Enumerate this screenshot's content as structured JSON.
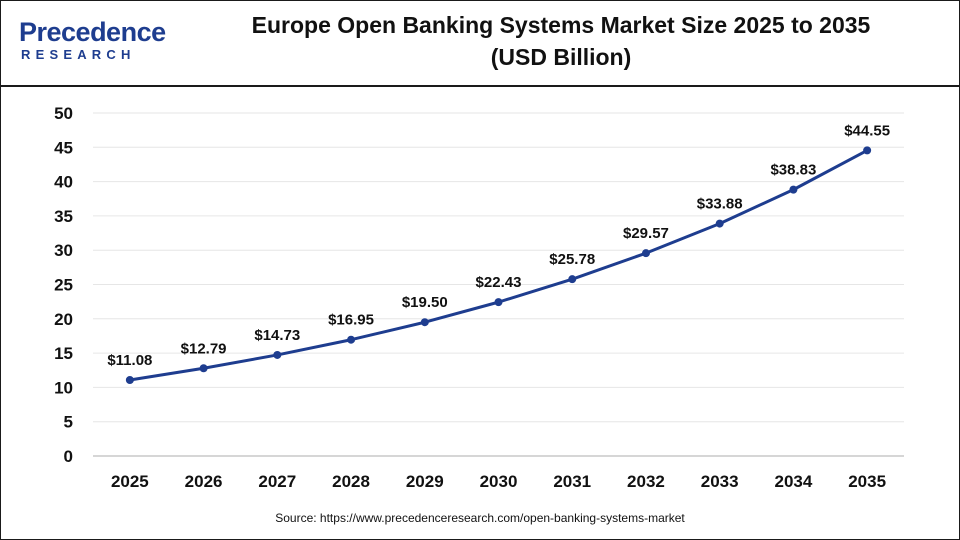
{
  "brand": {
    "word": "Precedence",
    "sub": "RESEARCH"
  },
  "title_line1": "Europe Open Banking Systems Market Size 2025 to 2035",
  "title_line2": "(USD Billion)",
  "source": "Source: https://www.precedenceresearch.com/open-banking-systems-market",
  "colors": {
    "line": "#1e3d8f",
    "grid": "#e6e6e6",
    "text": "#111111",
    "brand": "#1e3d8f"
  },
  "chart_data": {
    "type": "line",
    "title": "Europe Open Banking Systems Market Size 2025 to 2035 (USD Billion)",
    "xlabel": "",
    "ylabel": "",
    "categories": [
      "2025",
      "2026",
      "2027",
      "2028",
      "2029",
      "2030",
      "2031",
      "2032",
      "2033",
      "2034",
      "2035"
    ],
    "series": [
      {
        "values": [
          11.08,
          12.79,
          14.73,
          16.95,
          19.5,
          22.43,
          25.78,
          29.57,
          33.88,
          38.83,
          44.55
        ]
      }
    ],
    "data_labels": [
      "$11.08",
      "$12.79",
      "$14.73",
      "$16.95",
      "$19.50",
      "$22.43",
      "$25.78",
      "$29.57",
      "$33.88",
      "$38.83",
      "$44.55"
    ],
    "ylim": [
      0,
      50
    ],
    "yticks": [
      "0",
      "5",
      "10",
      "15",
      "20",
      "25",
      "30",
      "35",
      "40",
      "45",
      "50"
    ],
    "grid": true,
    "legend": "none"
  }
}
